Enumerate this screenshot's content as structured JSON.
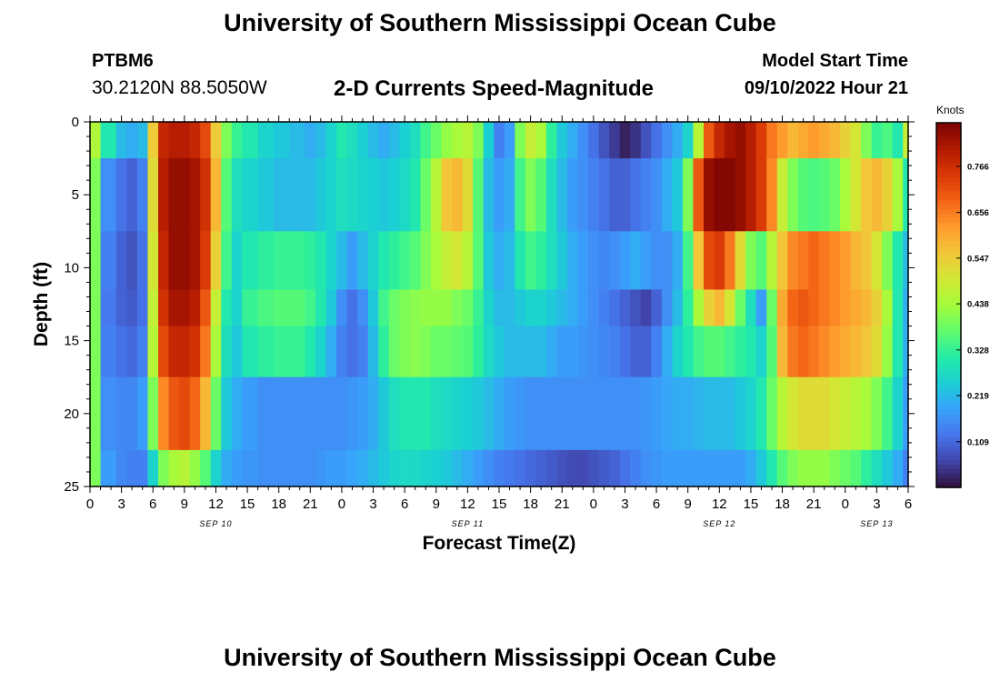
{
  "header": {
    "title": "University of Southern Mississippi Ocean Cube",
    "station_id": "PTBM6",
    "coordinates": "30.2120N  88.5050W",
    "plot_title": "2-D Currents Speed-Magnitude",
    "model_start_label": "Model Start Time",
    "model_start_value": "09/10/2022 Hour 21"
  },
  "footer": {
    "title": "University of Southern Mississippi Ocean Cube"
  },
  "chart_data": {
    "type": "heatmap",
    "title": "2-D Currents Speed-Magnitude",
    "xlabel": "Forecast Time(Z)",
    "ylabel": "Depth (ft)",
    "x_ticks": [
      "0",
      "3",
      "6",
      "9",
      "12",
      "15",
      "18",
      "21",
      "0",
      "3",
      "6",
      "9",
      "12",
      "15",
      "18",
      "21",
      "0",
      "3",
      "6",
      "9",
      "12",
      "15",
      "18",
      "21",
      "0",
      "3",
      "6"
    ],
    "x_tick_hours": [
      0,
      3,
      6,
      9,
      12,
      15,
      18,
      21,
      24,
      27,
      30,
      33,
      36,
      39,
      42,
      45,
      48,
      51,
      54,
      57,
      60,
      63,
      66,
      69,
      72,
      75,
      78
    ],
    "x_range_hours": [
      0,
      78
    ],
    "date_labels": [
      {
        "label": "SEP 10",
        "hour": 12
      },
      {
        "label": "SEP 11",
        "hour": 36
      },
      {
        "label": "SEP 12",
        "hour": 60
      },
      {
        "label": "SEP 13",
        "hour": 75
      }
    ],
    "y_ticks": [
      0,
      5,
      10,
      15,
      20,
      25
    ],
    "ylim": [
      0,
      25
    ],
    "y_inverted": true,
    "colorbar": {
      "label": "Knots",
      "ticks": [
        "0.766",
        "0.656",
        "0.547",
        "0.438",
        "0.328",
        "0.219",
        "0.109"
      ],
      "tick_values": [
        0.766,
        0.656,
        0.547,
        0.438,
        0.328,
        0.219,
        0.109
      ],
      "range": [
        0.0,
        0.87
      ],
      "colormap": [
        "#30123b",
        "#4145ab",
        "#4675ed",
        "#39a2fc",
        "#1bcfd4",
        "#24eca6",
        "#61fc6c",
        "#a4fc3b",
        "#d1e834",
        "#f3c63a",
        "#fe9b2d",
        "#f36315",
        "#d93806",
        "#b11901",
        "#7a0402"
      ]
    },
    "x_samples_hours": [
      0,
      2,
      3,
      4,
      5,
      6,
      7,
      8,
      9,
      10,
      11,
      12,
      13,
      14,
      15,
      17,
      18,
      20,
      21,
      22,
      23,
      24,
      25,
      26,
      27,
      28,
      29,
      30,
      31,
      32,
      33,
      34,
      35,
      36,
      37,
      38,
      39,
      40,
      41,
      42,
      43,
      44,
      45,
      46,
      47,
      48,
      49,
      50,
      51,
      52,
      53,
      54,
      55,
      56,
      57,
      58,
      59,
      60,
      61,
      62,
      63,
      64,
      65,
      66,
      67,
      68,
      69,
      70,
      71,
      72,
      73,
      74,
      75,
      76,
      77,
      78
    ],
    "depth_samples_ft": [
      0,
      5,
      10,
      13,
      15,
      20,
      25
    ],
    "values": [
      [
        0.45,
        0.3,
        0.22,
        0.2,
        0.22,
        0.55,
        0.78,
        0.8,
        0.8,
        0.78,
        0.72,
        0.55,
        0.4,
        0.33,
        0.3,
        0.26,
        0.24,
        0.22,
        0.2,
        0.22,
        0.26,
        0.3,
        0.28,
        0.25,
        0.22,
        0.2,
        0.22,
        0.25,
        0.28,
        0.34,
        0.38,
        0.42,
        0.44,
        0.46,
        0.4,
        0.25,
        0.14,
        0.18,
        0.4,
        0.48,
        0.44,
        0.32,
        0.24,
        0.2,
        0.16,
        0.12,
        0.08,
        0.05,
        0.02,
        0.04,
        0.08,
        0.12,
        0.16,
        0.2,
        0.26,
        0.46,
        0.7,
        0.78,
        0.82,
        0.84,
        0.8,
        0.74,
        0.66,
        0.62,
        0.58,
        0.6,
        0.62,
        0.6,
        0.58,
        0.54,
        0.5,
        0.4,
        0.33,
        0.35,
        0.3,
        0.48
      ],
      [
        0.4,
        0.16,
        0.12,
        0.1,
        0.14,
        0.52,
        0.8,
        0.84,
        0.84,
        0.82,
        0.76,
        0.58,
        0.36,
        0.28,
        0.26,
        0.24,
        0.22,
        0.22,
        0.22,
        0.24,
        0.26,
        0.28,
        0.27,
        0.26,
        0.25,
        0.24,
        0.25,
        0.27,
        0.3,
        0.38,
        0.46,
        0.56,
        0.58,
        0.52,
        0.36,
        0.22,
        0.18,
        0.2,
        0.34,
        0.4,
        0.36,
        0.28,
        0.22,
        0.18,
        0.16,
        0.14,
        0.12,
        0.1,
        0.1,
        0.12,
        0.14,
        0.16,
        0.2,
        0.24,
        0.4,
        0.7,
        0.84,
        0.86,
        0.86,
        0.84,
        0.8,
        0.74,
        0.64,
        0.48,
        0.4,
        0.36,
        0.35,
        0.36,
        0.38,
        0.44,
        0.5,
        0.56,
        0.58,
        0.54,
        0.44,
        0.3
      ],
      [
        0.4,
        0.14,
        0.1,
        0.08,
        0.12,
        0.5,
        0.78,
        0.84,
        0.84,
        0.82,
        0.74,
        0.54,
        0.34,
        0.26,
        0.3,
        0.32,
        0.33,
        0.33,
        0.32,
        0.3,
        0.26,
        0.22,
        0.18,
        0.22,
        0.26,
        0.3,
        0.32,
        0.34,
        0.36,
        0.4,
        0.44,
        0.48,
        0.5,
        0.46,
        0.36,
        0.24,
        0.2,
        0.22,
        0.3,
        0.34,
        0.32,
        0.28,
        0.24,
        0.2,
        0.18,
        0.16,
        0.15,
        0.16,
        0.18,
        0.2,
        0.18,
        0.16,
        0.16,
        0.2,
        0.34,
        0.56,
        0.72,
        0.74,
        0.66,
        0.52,
        0.4,
        0.36,
        0.46,
        0.56,
        0.64,
        0.66,
        0.68,
        0.66,
        0.64,
        0.62,
        0.58,
        0.56,
        0.5,
        0.4,
        0.3,
        0.22
      ],
      [
        0.4,
        0.13,
        0.1,
        0.09,
        0.12,
        0.48,
        0.76,
        0.82,
        0.82,
        0.8,
        0.7,
        0.48,
        0.3,
        0.26,
        0.33,
        0.35,
        0.36,
        0.36,
        0.34,
        0.3,
        0.24,
        0.16,
        0.12,
        0.16,
        0.24,
        0.34,
        0.38,
        0.4,
        0.41,
        0.42,
        0.42,
        0.42,
        0.4,
        0.38,
        0.33,
        0.26,
        0.22,
        0.22,
        0.24,
        0.26,
        0.26,
        0.24,
        0.22,
        0.2,
        0.18,
        0.16,
        0.14,
        0.12,
        0.1,
        0.08,
        0.06,
        0.1,
        0.16,
        0.22,
        0.32,
        0.44,
        0.54,
        0.58,
        0.5,
        0.38,
        0.28,
        0.18,
        0.38,
        0.6,
        0.68,
        0.7,
        0.68,
        0.66,
        0.64,
        0.62,
        0.6,
        0.58,
        0.54,
        0.44,
        0.3,
        0.2
      ],
      [
        0.4,
        0.14,
        0.12,
        0.11,
        0.14,
        0.46,
        0.72,
        0.78,
        0.78,
        0.76,
        0.66,
        0.44,
        0.28,
        0.24,
        0.3,
        0.32,
        0.33,
        0.33,
        0.3,
        0.26,
        0.2,
        0.14,
        0.12,
        0.14,
        0.22,
        0.32,
        0.38,
        0.4,
        0.41,
        0.4,
        0.38,
        0.38,
        0.37,
        0.36,
        0.32,
        0.27,
        0.24,
        0.22,
        0.22,
        0.22,
        0.22,
        0.2,
        0.18,
        0.18,
        0.17,
        0.16,
        0.15,
        0.14,
        0.12,
        0.1,
        0.1,
        0.14,
        0.2,
        0.26,
        0.3,
        0.34,
        0.36,
        0.36,
        0.34,
        0.32,
        0.3,
        0.26,
        0.36,
        0.58,
        0.66,
        0.68,
        0.66,
        0.64,
        0.62,
        0.6,
        0.58,
        0.56,
        0.52,
        0.42,
        0.3,
        0.2
      ],
      [
        0.4,
        0.16,
        0.15,
        0.15,
        0.18,
        0.4,
        0.64,
        0.7,
        0.72,
        0.68,
        0.58,
        0.38,
        0.24,
        0.2,
        0.18,
        0.16,
        0.16,
        0.16,
        0.16,
        0.16,
        0.16,
        0.16,
        0.17,
        0.18,
        0.2,
        0.24,
        0.28,
        0.3,
        0.3,
        0.3,
        0.28,
        0.27,
        0.26,
        0.25,
        0.24,
        0.22,
        0.2,
        0.18,
        0.17,
        0.16,
        0.16,
        0.16,
        0.16,
        0.16,
        0.16,
        0.16,
        0.16,
        0.16,
        0.16,
        0.16,
        0.17,
        0.18,
        0.19,
        0.2,
        0.2,
        0.21,
        0.22,
        0.22,
        0.22,
        0.24,
        0.26,
        0.3,
        0.38,
        0.46,
        0.5,
        0.52,
        0.52,
        0.52,
        0.5,
        0.48,
        0.46,
        0.44,
        0.4,
        0.34,
        0.26,
        0.18
      ],
      [
        0.4,
        0.18,
        0.15,
        0.14,
        0.14,
        0.26,
        0.4,
        0.44,
        0.46,
        0.42,
        0.36,
        0.26,
        0.2,
        0.18,
        0.17,
        0.16,
        0.16,
        0.16,
        0.16,
        0.17,
        0.18,
        0.18,
        0.19,
        0.2,
        0.22,
        0.24,
        0.26,
        0.27,
        0.27,
        0.26,
        0.25,
        0.24,
        0.22,
        0.2,
        0.18,
        0.16,
        0.14,
        0.13,
        0.12,
        0.11,
        0.1,
        0.09,
        0.08,
        0.07,
        0.07,
        0.08,
        0.09,
        0.1,
        0.12,
        0.14,
        0.16,
        0.17,
        0.18,
        0.18,
        0.18,
        0.18,
        0.18,
        0.18,
        0.18,
        0.18,
        0.2,
        0.24,
        0.3,
        0.36,
        0.4,
        0.42,
        0.42,
        0.42,
        0.4,
        0.38,
        0.36,
        0.32,
        0.28,
        0.24,
        0.2,
        0.14
      ]
    ]
  }
}
